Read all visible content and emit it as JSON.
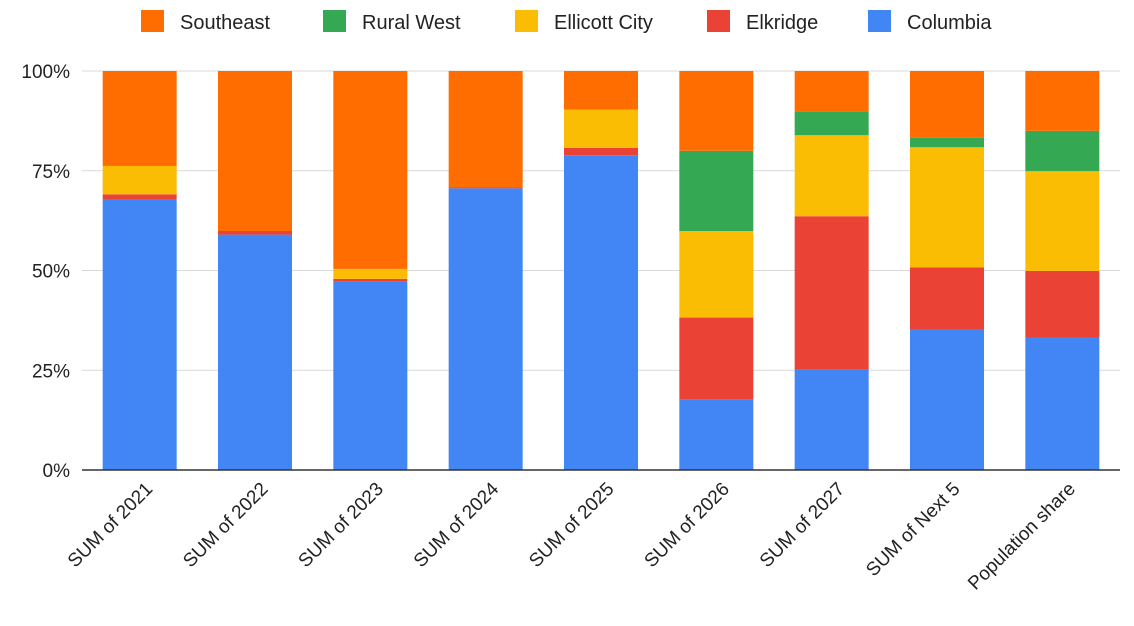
{
  "chart_data": {
    "type": "bar",
    "stacked": true,
    "normalized": true,
    "categories": [
      "SUM of 2021",
      "SUM of 2022",
      "SUM of 2023",
      "SUM of 2024",
      "SUM of 2025",
      "SUM of 2026",
      "SUM of 2027",
      "SUM of Next 5",
      "Population share"
    ],
    "series": [
      {
        "name": "Columbia",
        "color": "#4285f4",
        "values": [
          67.7,
          59.0,
          47.2,
          70.6,
          78.9,
          17.6,
          25.3,
          35.2,
          33.2
        ]
      },
      {
        "name": "Elkridge",
        "color": "#ea4335",
        "values": [
          1.4,
          0.9,
          0.7,
          0.2,
          1.8,
          20.6,
          38.3,
          15.6,
          16.7
        ]
      },
      {
        "name": "Ellicott City",
        "color": "#fbbc04",
        "values": [
          7.1,
          0.0,
          2.5,
          0.0,
          9.6,
          21.7,
          20.3,
          30.1,
          25.0
        ]
      },
      {
        "name": "Rural West",
        "color": "#34a853",
        "values": [
          0.0,
          0.0,
          0.0,
          0.0,
          0.0,
          20.1,
          6.0,
          2.4,
          10.1
        ]
      },
      {
        "name": "Southeast",
        "color": "#ff6d01",
        "values": [
          23.8,
          40.1,
          49.6,
          29.2,
          9.7,
          20.0,
          10.1,
          16.7,
          15.0
        ]
      }
    ],
    "legend_order": [
      "Southeast",
      "Rural West",
      "Ellicott City",
      "Elkridge",
      "Columbia"
    ],
    "yticks": [
      "0%",
      "25%",
      "50%",
      "75%",
      "100%"
    ],
    "ylim": [
      0,
      100
    ],
    "legend_position": "top",
    "grid": true,
    "title": "",
    "xlabel": "",
    "ylabel": ""
  }
}
